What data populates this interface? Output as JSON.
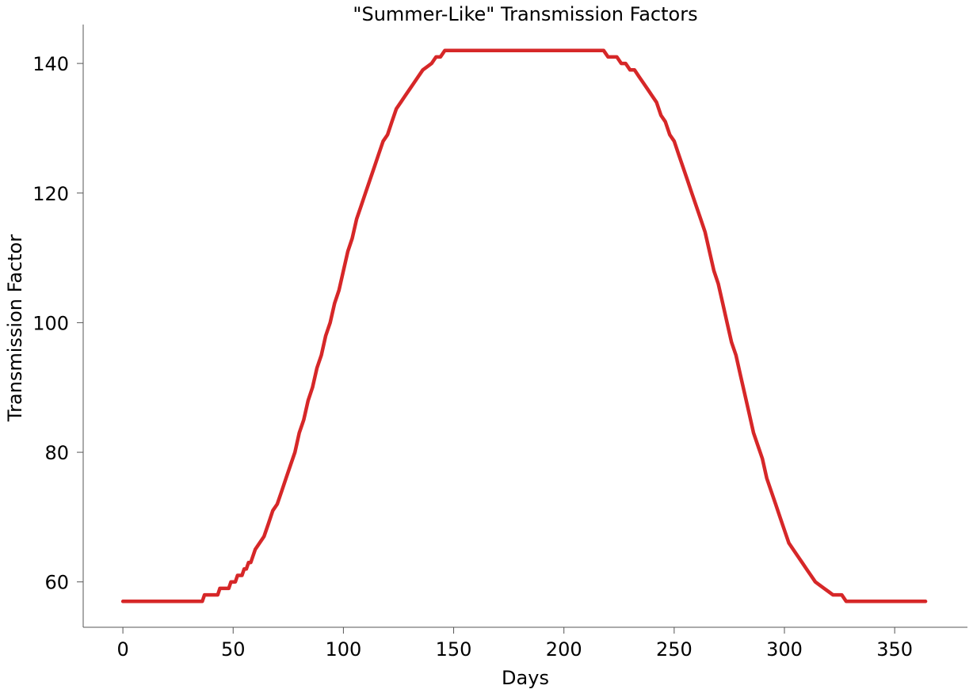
{
  "chart_data": {
    "type": "line",
    "title": "\"Summer-Like\" Transmission Factors",
    "xlabel": "Days",
    "ylabel": "Transmission Factor",
    "xlim": [
      -18,
      383
    ],
    "ylim": [
      53,
      146
    ],
    "x_ticks": [
      0,
      50,
      100,
      150,
      200,
      250,
      300,
      350
    ],
    "y_ticks": [
      60,
      80,
      100,
      120,
      140
    ],
    "grid": false,
    "legend": "none",
    "series": [
      {
        "color": "#d62728",
        "x": [
          0,
          36,
          37,
          43,
          44,
          48,
          49,
          51,
          52,
          54,
          55,
          56,
          57,
          58,
          60,
          62,
          64,
          66,
          68,
          70,
          72,
          74,
          76,
          78,
          80,
          82,
          84,
          86,
          88,
          90,
          92,
          94,
          96,
          98,
          100,
          102,
          104,
          106,
          108,
          110,
          112,
          114,
          116,
          118,
          120,
          122,
          124,
          126,
          128,
          130,
          132,
          134,
          136,
          138,
          140,
          142,
          144,
          146,
          150,
          218,
          220,
          222,
          224,
          226,
          228,
          230,
          232,
          234,
          236,
          238,
          240,
          242,
          244,
          246,
          248,
          250,
          252,
          254,
          256,
          258,
          260,
          262,
          264,
          266,
          268,
          270,
          272,
          274,
          276,
          278,
          280,
          282,
          284,
          286,
          288,
          290,
          292,
          294,
          296,
          298,
          300,
          302,
          304,
          306,
          308,
          310,
          312,
          314,
          316,
          318,
          320,
          322,
          326,
          328,
          364
        ],
        "y": [
          57,
          57,
          58,
          58,
          59,
          59,
          60,
          60,
          61,
          61,
          62,
          62,
          63,
          63,
          65,
          66,
          67,
          69,
          71,
          72,
          74,
          76,
          78,
          80,
          83,
          85,
          88,
          90,
          93,
          95,
          98,
          100,
          103,
          105,
          108,
          111,
          113,
          116,
          118,
          120,
          122,
          124,
          126,
          128,
          129,
          131,
          133,
          134,
          135,
          136,
          137,
          138,
          139,
          139.5,
          140,
          141,
          141,
          142,
          142,
          142,
          141,
          141,
          141,
          140,
          140,
          139,
          139,
          138,
          137,
          136,
          135,
          134,
          132,
          131,
          129,
          128,
          126,
          124,
          122,
          120,
          118,
          116,
          114,
          111,
          108,
          106,
          103,
          100,
          97,
          95,
          92,
          89,
          86,
          83,
          81,
          79,
          76,
          74,
          72,
          70,
          68,
          66,
          65,
          64,
          63,
          62,
          61,
          60,
          59.5,
          59,
          58.5,
          58,
          58,
          57,
          57
        ]
      }
    ]
  }
}
